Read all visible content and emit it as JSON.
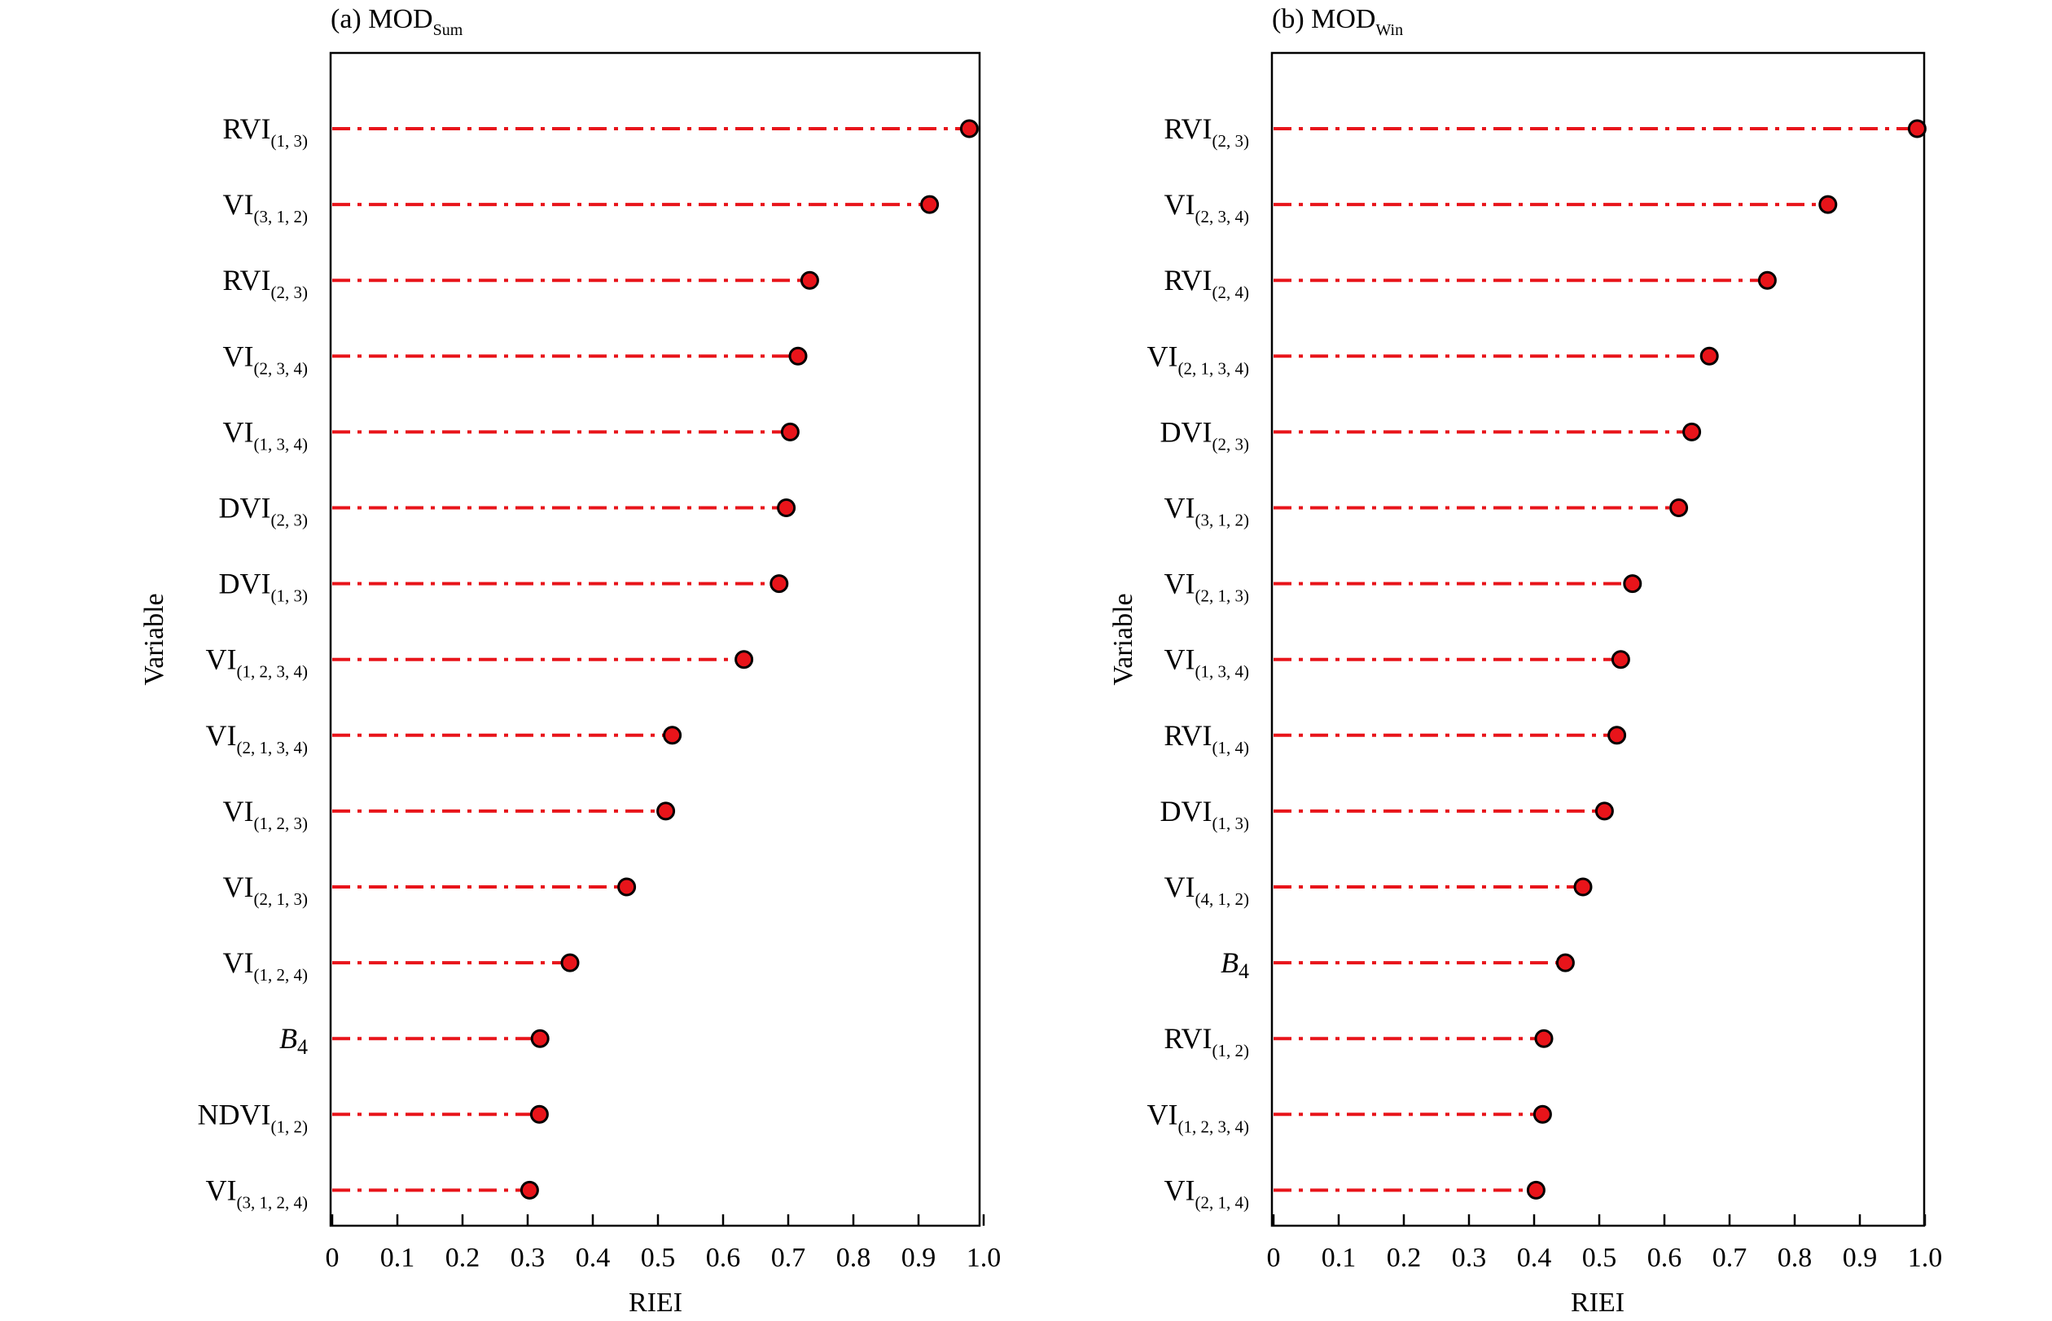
{
  "chart_data": [
    {
      "type": "lollipop",
      "panel_label": "(a) MOD",
      "panel_sub": "Sum",
      "xlabel": "RIEI",
      "ylabel": "Variable",
      "xlim": [
        0,
        1.0
      ],
      "xticks": [
        "0",
        "0.1",
        "0.2",
        "0.3",
        "0.4",
        "0.5",
        "0.6",
        "0.7",
        "0.8",
        "0.9",
        "1.0"
      ],
      "color": "#e8141a",
      "categories": [
        {
          "base": "RVI",
          "sub": "(1, 3)",
          "italic": false,
          "value": 0.978
        },
        {
          "base": "VI",
          "sub": "(3, 1, 2)",
          "italic": false,
          "value": 0.917
        },
        {
          "base": "RVI",
          "sub": "(2, 3)",
          "italic": false,
          "value": 0.733
        },
        {
          "base": "VI",
          "sub": "(2, 3, 4)",
          "italic": false,
          "value": 0.715
        },
        {
          "base": "VI",
          "sub": "(1, 3, 4)",
          "italic": false,
          "value": 0.703
        },
        {
          "base": "DVI",
          "sub": "(2, 3)",
          "italic": false,
          "value": 0.697
        },
        {
          "base": "DVI",
          "sub": "(1, 3)",
          "italic": false,
          "value": 0.686
        },
        {
          "base": "VI",
          "sub": "(1, 2, 3, 4)",
          "italic": false,
          "value": 0.632
        },
        {
          "base": "VI",
          "sub": "(2, 1, 3, 4)",
          "italic": false,
          "value": 0.522
        },
        {
          "base": "VI",
          "sub": "(1, 2, 3)",
          "italic": false,
          "value": 0.512
        },
        {
          "base": "VI",
          "sub": "(2, 1, 3)",
          "italic": false,
          "value": 0.452
        },
        {
          "base": "VI",
          "sub": "(1, 2, 4)",
          "italic": false,
          "value": 0.365
        },
        {
          "base": "B",
          "sub": "4",
          "italic": true,
          "value": 0.319
        },
        {
          "base": "NDVI",
          "sub": "(1, 2)",
          "italic": false,
          "value": 0.318
        },
        {
          "base": "VI",
          "sub": "(3, 1, 2, 4)",
          "italic": false,
          "value": 0.303
        }
      ]
    },
    {
      "type": "lollipop",
      "panel_label": "(b) MOD",
      "panel_sub": "Win",
      "xlabel": "RIEI",
      "ylabel": "Variable",
      "xlim": [
        0,
        1.0
      ],
      "xticks": [
        "0",
        "0.1",
        "0.2",
        "0.3",
        "0.4",
        "0.5",
        "0.6",
        "0.7",
        "0.8",
        "0.9",
        "1.0"
      ],
      "color": "#e8141a",
      "categories": [
        {
          "base": "RVI",
          "sub": "(2, 3)",
          "italic": false,
          "value": 0.988
        },
        {
          "base": "VI",
          "sub": "(2, 3, 4)",
          "italic": false,
          "value": 0.851
        },
        {
          "base": "RVI",
          "sub": "(2, 4)",
          "italic": false,
          "value": 0.758
        },
        {
          "base": "VI",
          "sub": "(2, 1, 3, 4)",
          "italic": false,
          "value": 0.669
        },
        {
          "base": "DVI",
          "sub": "(2, 3)",
          "italic": false,
          "value": 0.642
        },
        {
          "base": "VI",
          "sub": "(3, 1, 2)",
          "italic": false,
          "value": 0.622
        },
        {
          "base": "VI",
          "sub": "(2, 1, 3)",
          "italic": false,
          "value": 0.551
        },
        {
          "base": "VI",
          "sub": "(1, 3, 4)",
          "italic": false,
          "value": 0.533
        },
        {
          "base": "RVI",
          "sub": "(1, 4)",
          "italic": false,
          "value": 0.527
        },
        {
          "base": "DVI",
          "sub": "(1, 3)",
          "italic": false,
          "value": 0.508
        },
        {
          "base": "VI",
          "sub": "(4, 1, 2)",
          "italic": false,
          "value": 0.475
        },
        {
          "base": "B",
          "sub": "4",
          "italic": true,
          "value": 0.448
        },
        {
          "base": "RVI",
          "sub": "(1, 2)",
          "italic": false,
          "value": 0.415
        },
        {
          "base": "VI",
          "sub": "(1, 2, 3, 4)",
          "italic": false,
          "value": 0.413
        },
        {
          "base": "VI",
          "sub": "(2, 1, 4)",
          "italic": false,
          "value": 0.403
        }
      ]
    }
  ]
}
